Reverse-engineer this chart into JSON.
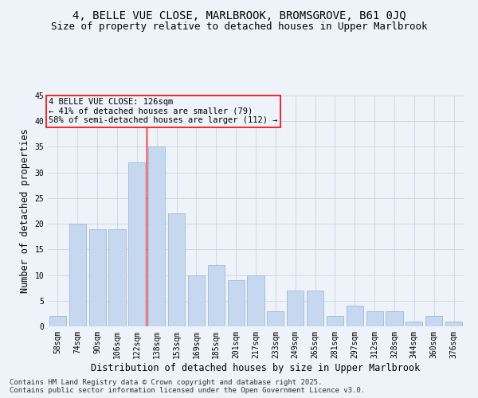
{
  "title": "4, BELLE VUE CLOSE, MARLBROOK, BROMSGROVE, B61 0JQ",
  "subtitle": "Size of property relative to detached houses in Upper Marlbrook",
  "xlabel": "Distribution of detached houses by size in Upper Marlbrook",
  "ylabel": "Number of detached properties",
  "categories": [
    "58sqm",
    "74sqm",
    "90sqm",
    "106sqm",
    "122sqm",
    "138sqm",
    "153sqm",
    "169sqm",
    "185sqm",
    "201sqm",
    "217sqm",
    "233sqm",
    "249sqm",
    "265sqm",
    "281sqm",
    "297sqm",
    "312sqm",
    "328sqm",
    "344sqm",
    "360sqm",
    "376sqm"
  ],
  "values": [
    2,
    20,
    19,
    19,
    32,
    35,
    22,
    10,
    12,
    9,
    10,
    3,
    7,
    7,
    2,
    4,
    3,
    3,
    1,
    2,
    1
  ],
  "bar_color": "#c5d8f0",
  "bar_edge_color": "#a0b8d8",
  "grid_color": "#d0d8e8",
  "background_color": "#eef3fa",
  "annotation_line1": "4 BELLE VUE CLOSE: 126sqm",
  "annotation_line2": "← 41% of detached houses are smaller (79)",
  "annotation_line3": "58% of semi-detached houses are larger (112) →",
  "annotation_box_color": "#ff0000",
  "property_line_x": 4.5,
  "ylim": [
    0,
    45
  ],
  "yticks": [
    0,
    5,
    10,
    15,
    20,
    25,
    30,
    35,
    40,
    45
  ],
  "footer": "Contains HM Land Registry data © Crown copyright and database right 2025.\nContains public sector information licensed under the Open Government Licence v3.0.",
  "title_fontsize": 10,
  "subtitle_fontsize": 9,
  "xlabel_fontsize": 8.5,
  "ylabel_fontsize": 8.5,
  "tick_fontsize": 7,
  "annotation_fontsize": 7.5,
  "footer_fontsize": 6.5
}
